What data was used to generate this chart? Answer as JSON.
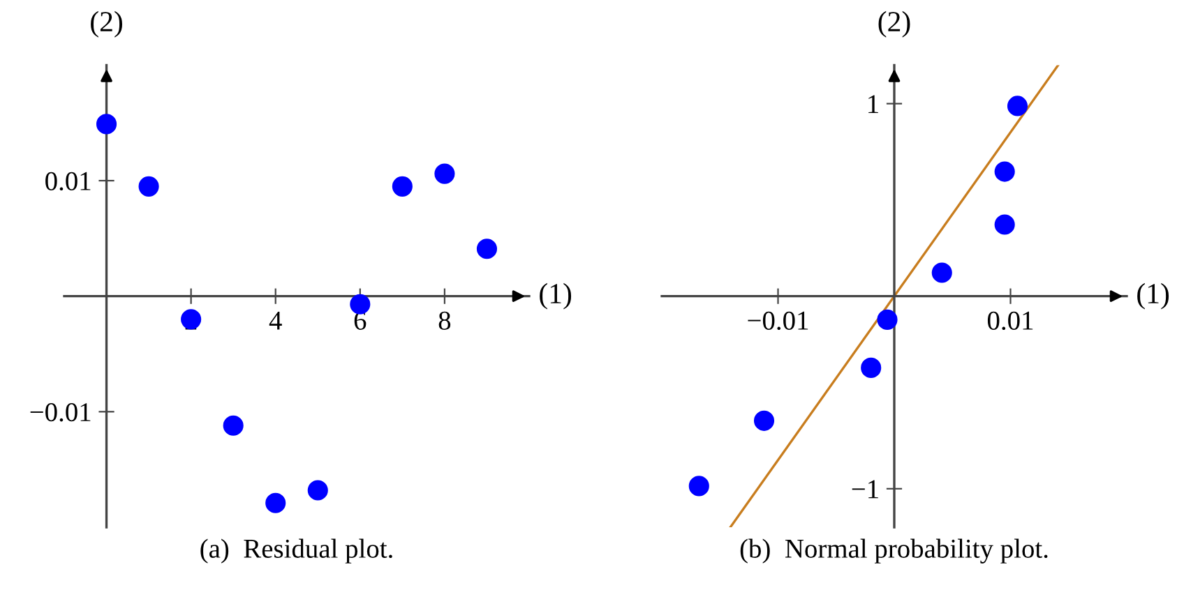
{
  "chart_data": [
    {
      "type": "scatter",
      "title": "(a)  Residual plot.",
      "xlabel": "(1)",
      "ylabel": "(2)",
      "marker": "circle",
      "grid": false,
      "x": [
        0,
        1,
        2,
        3,
        4,
        5,
        6,
        7,
        8,
        9
      ],
      "series": [
        {
          "color": "#0000ff",
          "values": [
            0.0149,
            0.0095,
            -0.002,
            -0.0112,
            -0.0179,
            -0.0168,
            -0.0007,
            0.0095,
            0.0106,
            0.0041
          ]
        }
      ],
      "xlim": [
        -1,
        10
      ],
      "ylim": [
        -0.02,
        0.02
      ],
      "xticks": [
        2,
        4,
        6,
        8
      ],
      "yticks": [
        {
          "value": -0.01,
          "label": "−0.01"
        },
        0.01
      ]
    },
    {
      "type": "scatter",
      "title": "(b)  Normal probability plot.",
      "xlabel": "(1)",
      "ylabel": "(2)",
      "marker": "circle",
      "grid": false,
      "series": [
        {
          "color": "#0000ff",
          "x": [
            -0.0168,
            -0.0112,
            -0.002,
            -0.0006,
            0.0041,
            0.0095,
            0.0095,
            0.0106
          ],
          "values": [
            -0.986,
            -0.647,
            -0.372,
            -0.122,
            0.122,
            0.372,
            0.647,
            0.988
          ]
        },
        {
          "type": "line",
          "color": "#c87d1e",
          "marker": "none",
          "x": [
            -0.0141,
            0.0141
          ],
          "values": [
            -1.2,
            1.2
          ]
        }
      ],
      "xlim": [
        -0.02,
        0.02
      ],
      "ylim": [
        -1.2,
        1.2
      ],
      "xticks": [
        {
          "value": -0.01,
          "label": "−0.01"
        },
        0.01
      ],
      "yticks": [
        {
          "value": -1,
          "label": "−1"
        },
        1
      ]
    }
  ]
}
